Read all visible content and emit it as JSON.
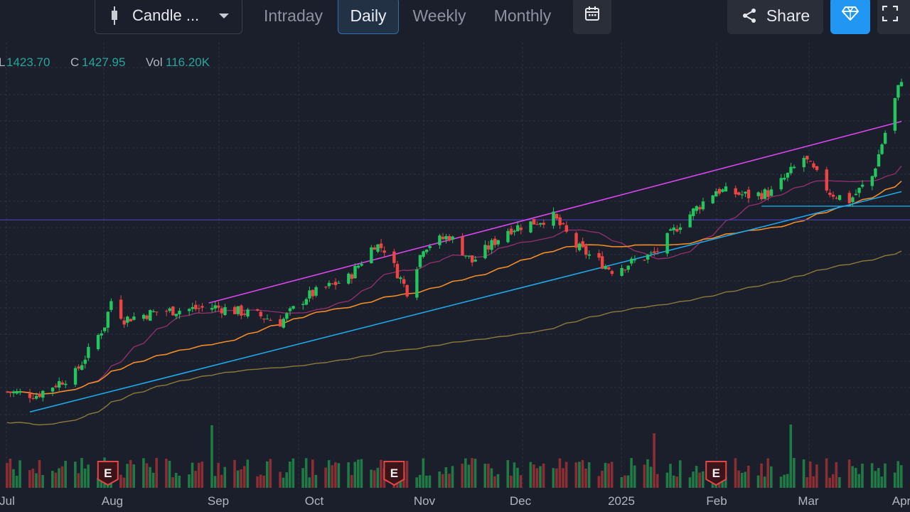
{
  "toolbar": {
    "chart_type_label": "Candle ...",
    "intervals": [
      {
        "label": "Intraday",
        "active": false
      },
      {
        "label": "Daily",
        "active": true
      },
      {
        "label": "Weekly",
        "active": false
      },
      {
        "label": "Monthly",
        "active": false
      }
    ],
    "calendar_icon": "calendar-icon",
    "share_label": "Share",
    "share_icon": "share-icon",
    "premium_icon": "diamond-icon",
    "fullscreen_icon": "fullscreen-icon"
  },
  "ohlc": {
    "low_key": "L",
    "low_value": "1423.70",
    "close_key": "C",
    "close_value": "1427.95",
    "vol_key": "Vol",
    "vol_value": "116.20K"
  },
  "colors": {
    "background": "#1b1f2b",
    "up": "#22c55e",
    "down": "#ef4444",
    "upper_channel": "#d946ef",
    "lower_channel": "#1ea7e8",
    "support_line": "#1ea7e8",
    "horizontal_level": "#4a3fa8",
    "ma_short": "#8e2f6b",
    "ma_mid": "#f28c28",
    "ma_long": "#8c7a3a",
    "earnings_badge": "#e04848"
  },
  "chart_data": {
    "type": "candlestick",
    "x_tick_labels": [
      "Jul",
      "Aug",
      "Sep",
      "Oct",
      "Nov",
      "Dec",
      "2025",
      "Feb",
      "Mar",
      "Apr"
    ],
    "x_range": [
      "2024-07-01",
      "2025-04-02"
    ],
    "y_range": [
      1005,
      1450
    ],
    "y_axis_labels_visible": false,
    "grid": true,
    "earnings_marker_label": "E",
    "earnings_markers": [
      "2024-08-01",
      "2024-10-28",
      "2025-02-04"
    ],
    "anchors": [
      {
        "date": "2024-07-01",
        "close": 1035
      },
      {
        "date": "2024-07-10",
        "close": 1031
      },
      {
        "date": "2024-07-22",
        "close": 1058
      },
      {
        "date": "2024-07-31",
        "close": 1118
      },
      {
        "date": "2024-08-02",
        "close": 1148
      },
      {
        "date": "2024-08-06",
        "close": 1125
      },
      {
        "date": "2024-08-16",
        "close": 1134
      },
      {
        "date": "2024-09-03",
        "close": 1140
      },
      {
        "date": "2024-09-16",
        "close": 1130
      },
      {
        "date": "2024-09-23",
        "close": 1121
      },
      {
        "date": "2024-10-01",
        "close": 1153
      },
      {
        "date": "2024-10-14",
        "close": 1176
      },
      {
        "date": "2024-10-22",
        "close": 1218
      },
      {
        "date": "2024-10-25",
        "close": 1212
      },
      {
        "date": "2024-11-01",
        "close": 1160
      },
      {
        "date": "2024-11-06",
        "close": 1215
      },
      {
        "date": "2024-11-14",
        "close": 1228
      },
      {
        "date": "2024-11-21",
        "close": 1196
      },
      {
        "date": "2024-12-02",
        "close": 1236
      },
      {
        "date": "2024-12-16",
        "close": 1252
      },
      {
        "date": "2024-12-23",
        "close": 1215
      },
      {
        "date": "2025-01-03",
        "close": 1186
      },
      {
        "date": "2025-01-16",
        "close": 1206
      },
      {
        "date": "2025-01-24",
        "close": 1244
      },
      {
        "date": "2025-02-04",
        "close": 1285
      },
      {
        "date": "2025-02-14",
        "close": 1278
      },
      {
        "date": "2025-02-21",
        "close": 1282
      },
      {
        "date": "2025-03-03",
        "close": 1325
      },
      {
        "date": "2025-03-11",
        "close": 1282
      },
      {
        "date": "2025-03-17",
        "close": 1272
      },
      {
        "date": "2025-03-24",
        "close": 1302
      },
      {
        "date": "2025-04-02",
        "close": 1424
      }
    ],
    "volume_range": [
      0,
      250000
    ],
    "volume_average": 75000,
    "overlays": {
      "horizontal_levels": [
        1248,
        1265
      ],
      "upper_channel": [
        {
          "date": "2024-09-01",
          "value": 1145
        },
        {
          "date": "2025-04-02",
          "value": 1370
        }
      ],
      "lower_channel": [
        {
          "date": "2024-07-08",
          "value": 1010
        },
        {
          "date": "2025-04-02",
          "value": 1283
        }
      ]
    }
  }
}
